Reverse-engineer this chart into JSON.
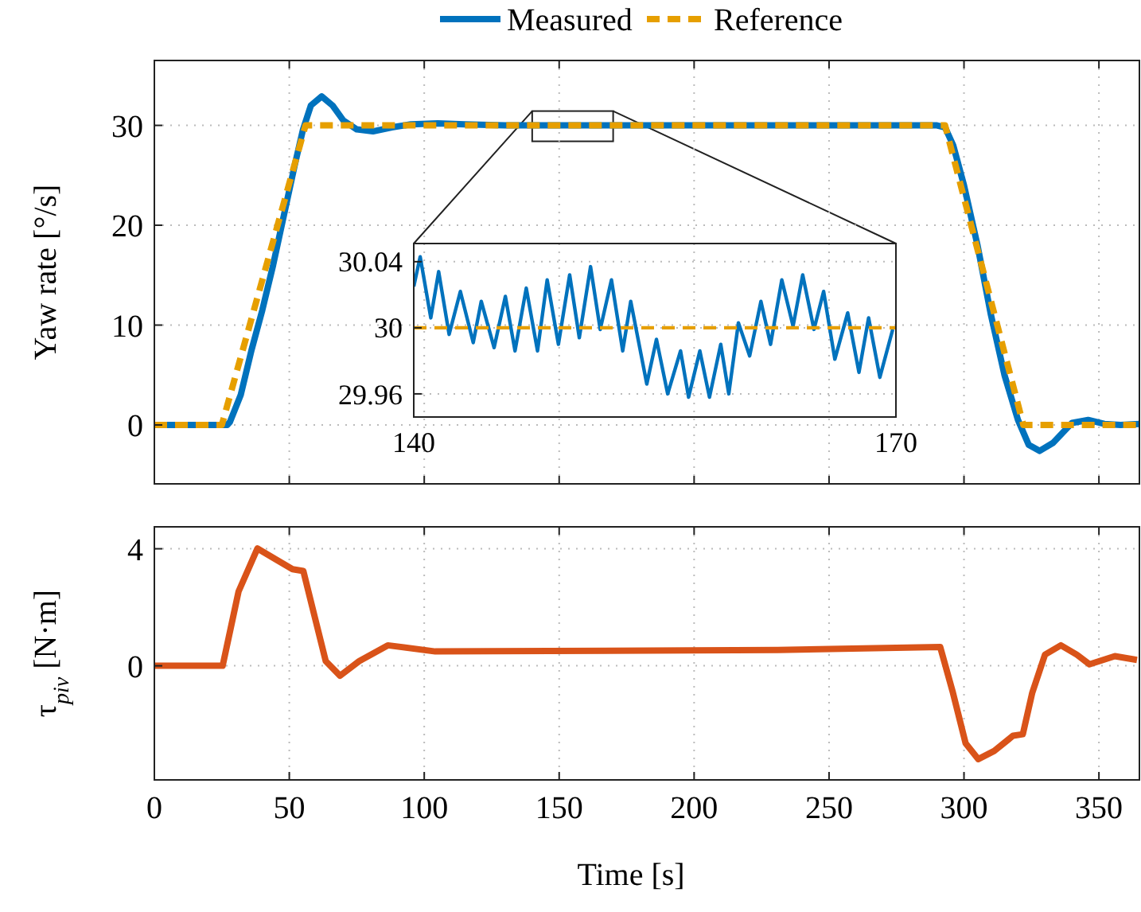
{
  "chart_data": [
    {
      "type": "line",
      "ylabel": "Yaw rate [°/s]",
      "xlim": [
        0,
        365
      ],
      "ylim": [
        -5.9,
        36.5
      ],
      "xticks": [
        0,
        50,
        100,
        150,
        200,
        250,
        300,
        350
      ],
      "yticks": [
        0,
        10,
        20,
        30
      ],
      "grid": true,
      "legend": "top",
      "tick_labels": "y",
      "series": [
        {
          "name": "Measured",
          "color": "#0072bd",
          "line_style": "solid",
          "x": [
            0,
            27,
            28,
            32,
            36,
            40,
            44,
            48,
            52,
            55,
            58,
            62,
            66,
            70,
            75,
            81,
            88,
            95,
            105,
            115,
            130,
            290,
            293,
            296,
            300,
            305,
            310,
            315,
            320,
            324,
            328,
            333,
            340,
            346,
            352,
            358,
            365
          ],
          "values": [
            0,
            0,
            0.3,
            3,
            7.5,
            11.5,
            16,
            21,
            26,
            29.5,
            32,
            32.9,
            32,
            30.5,
            29.6,
            29.4,
            29.8,
            30.1,
            30.2,
            30.1,
            30,
            30,
            29.8,
            28,
            24,
            18,
            11,
            5,
            0.5,
            -2,
            -2.6,
            -1.8,
            0.2,
            0.5,
            0.1,
            0,
            0.1
          ]
        },
        {
          "name": "Reference",
          "color": "#e69f00",
          "line_style": "dashed",
          "x": [
            0,
            25,
            56,
            293,
            322,
            365
          ],
          "values": [
            0,
            0,
            30,
            30,
            0,
            0
          ]
        }
      ]
    },
    {
      "type": "line",
      "xlim": [
        140,
        170
      ],
      "ylim": [
        29.946,
        30.051
      ],
      "xticks": [
        140,
        170
      ],
      "yticks": [
        29.96,
        30,
        30.04
      ],
      "grid": "y",
      "series": [
        {
          "color": "#0072bd",
          "line_style": "solid",
          "x": [
            140.0,
            140.4,
            141.06,
            141.55,
            142.2,
            142.9,
            143.7,
            144.2,
            145.0,
            145.7,
            146.3,
            147.0,
            147.7,
            148.3,
            149.0,
            149.7,
            150.3,
            151.0,
            151.6,
            152.3,
            153.0,
            153.5,
            154.5,
            155.1,
            155.8,
            156.6,
            157.1,
            157.8,
            158.4,
            159.1,
            159.6,
            160.2,
            160.9,
            161.6,
            162.2,
            162.9,
            163.6,
            164.2,
            164.9,
            165.5,
            166.2,
            167.0,
            167.7,
            168.3,
            169.0,
            169.8
          ],
          "values": [
            30.025,
            30.043,
            30.006,
            30.034,
            29.996,
            30.022,
            29.991,
            30.016,
            29.988,
            30.019,
            29.986,
            30.024,
            29.986,
            30.029,
            29.99,
            30.032,
            29.994,
            30.037,
            29.999,
            30.029,
            29.986,
            30.016,
            29.966,
            29.993,
            29.96,
            29.986,
            29.958,
            29.986,
            29.958,
            29.99,
            29.96,
            30.003,
            29.983,
            30.016,
            29.99,
            30.029,
            30.001,
            30.032,
            29.999,
            30.022,
            29.981,
            30.009,
            29.973,
            30.006,
            29.97,
            29.999
          ]
        },
        {
          "color": "#e69f00",
          "line_style": "dashed",
          "x": [
            140,
            170
          ],
          "values": [
            30,
            30
          ]
        }
      ]
    },
    {
      "type": "line",
      "xlabel": "Time [s]",
      "ylabel": "τ$_{piv}$ [N·m]",
      "xlim": [
        0,
        365
      ],
      "ylim": [
        -3.9,
        4.75
      ],
      "xticks": [
        0,
        50,
        100,
        150,
        200,
        250,
        300,
        350
      ],
      "yticks": [
        0,
        4
      ],
      "grid": true,
      "series": [
        {
          "color": "#d95319",
          "line_style": "solid",
          "x": [
            0,
            25.3,
            31.2,
            38.2,
            45.3,
            51.2,
            55.2,
            59.4,
            63.5,
            68.8,
            75.9,
            86.5,
            104.1,
            231,
            291.2,
            295.9,
            300.6,
            305.3,
            311.2,
            318.2,
            321.8,
            325.3,
            330,
            335.9,
            341.8,
            346.5,
            355.9,
            364.1
          ],
          "values": [
            0,
            0,
            2.54,
            4.01,
            3.62,
            3.3,
            3.24,
            1.68,
            0.16,
            -0.34,
            0.16,
            0.7,
            0.49,
            0.54,
            0.64,
            -0.92,
            -2.65,
            -3.19,
            -2.91,
            -2.39,
            -2.34,
            -0.92,
            0.38,
            0.7,
            0.38,
            0.05,
            0.33,
            0.2
          ]
        }
      ]
    }
  ]
}
